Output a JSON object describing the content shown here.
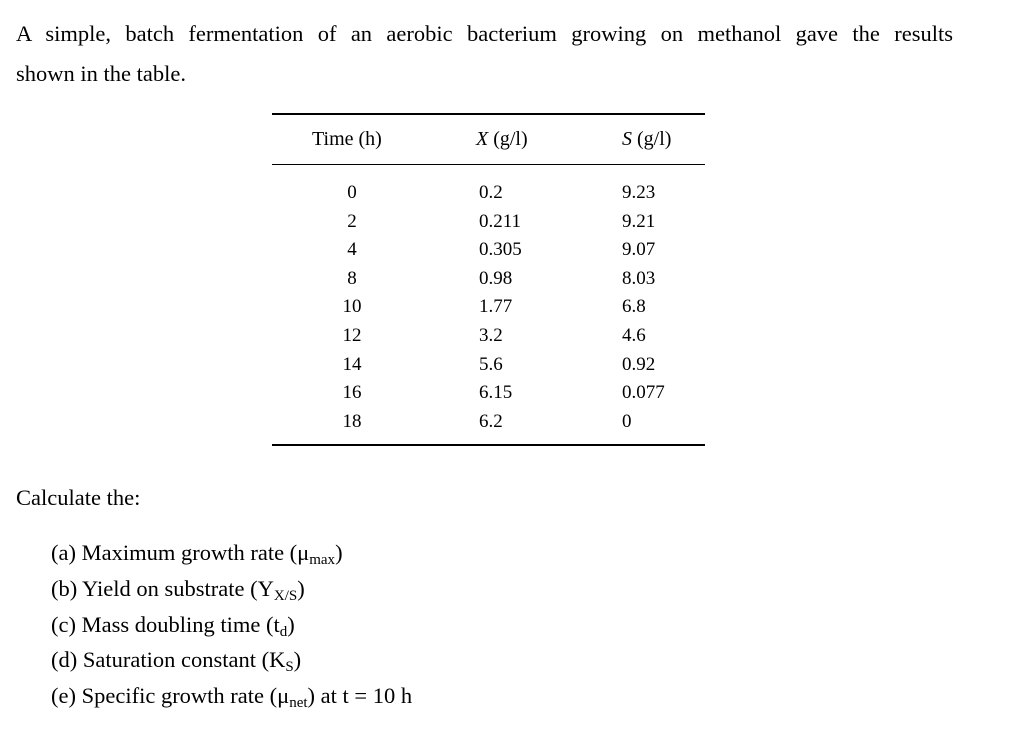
{
  "intro": {
    "line1": "A simple, batch fermentation of an aerobic bacterium growing on methanol gave the results",
    "line2": "shown in the table."
  },
  "table": {
    "headers": {
      "time": "Time (h)",
      "x_var": "X",
      "x_unit": " (g/l)",
      "s_var": "S",
      "s_unit": " (g/l)"
    },
    "time": [
      "0",
      "2",
      "4",
      "8",
      "10",
      "12",
      "14",
      "16",
      "18"
    ],
    "x": [
      "0.2",
      "0.211",
      "0.305",
      "0.98",
      "1.77",
      "3.2",
      "5.6",
      "6.15",
      "6.2"
    ],
    "s": [
      "9.23",
      "9.21",
      "9.07",
      "8.03",
      "6.8",
      "4.6",
      "0.92",
      "0.077",
      "0"
    ]
  },
  "calculate_label": "Calculate the:",
  "questions": {
    "a": {
      "text": "(a) Maximum growth rate (μ",
      "sub": "max",
      "end": ")"
    },
    "b": {
      "text": "(b) Yield on substrate (Y",
      "sub": "X/S",
      "end": ")"
    },
    "c": {
      "text": "(c) Mass doubling time (t",
      "sub": "d",
      "end": ")"
    },
    "d": {
      "text": "(d) Saturation constant (K",
      "sub": "S",
      "end": ")"
    },
    "e": {
      "text": "(e) Specific growth rate (μ",
      "sub": "net",
      "end": ") at t = 10 h"
    }
  }
}
